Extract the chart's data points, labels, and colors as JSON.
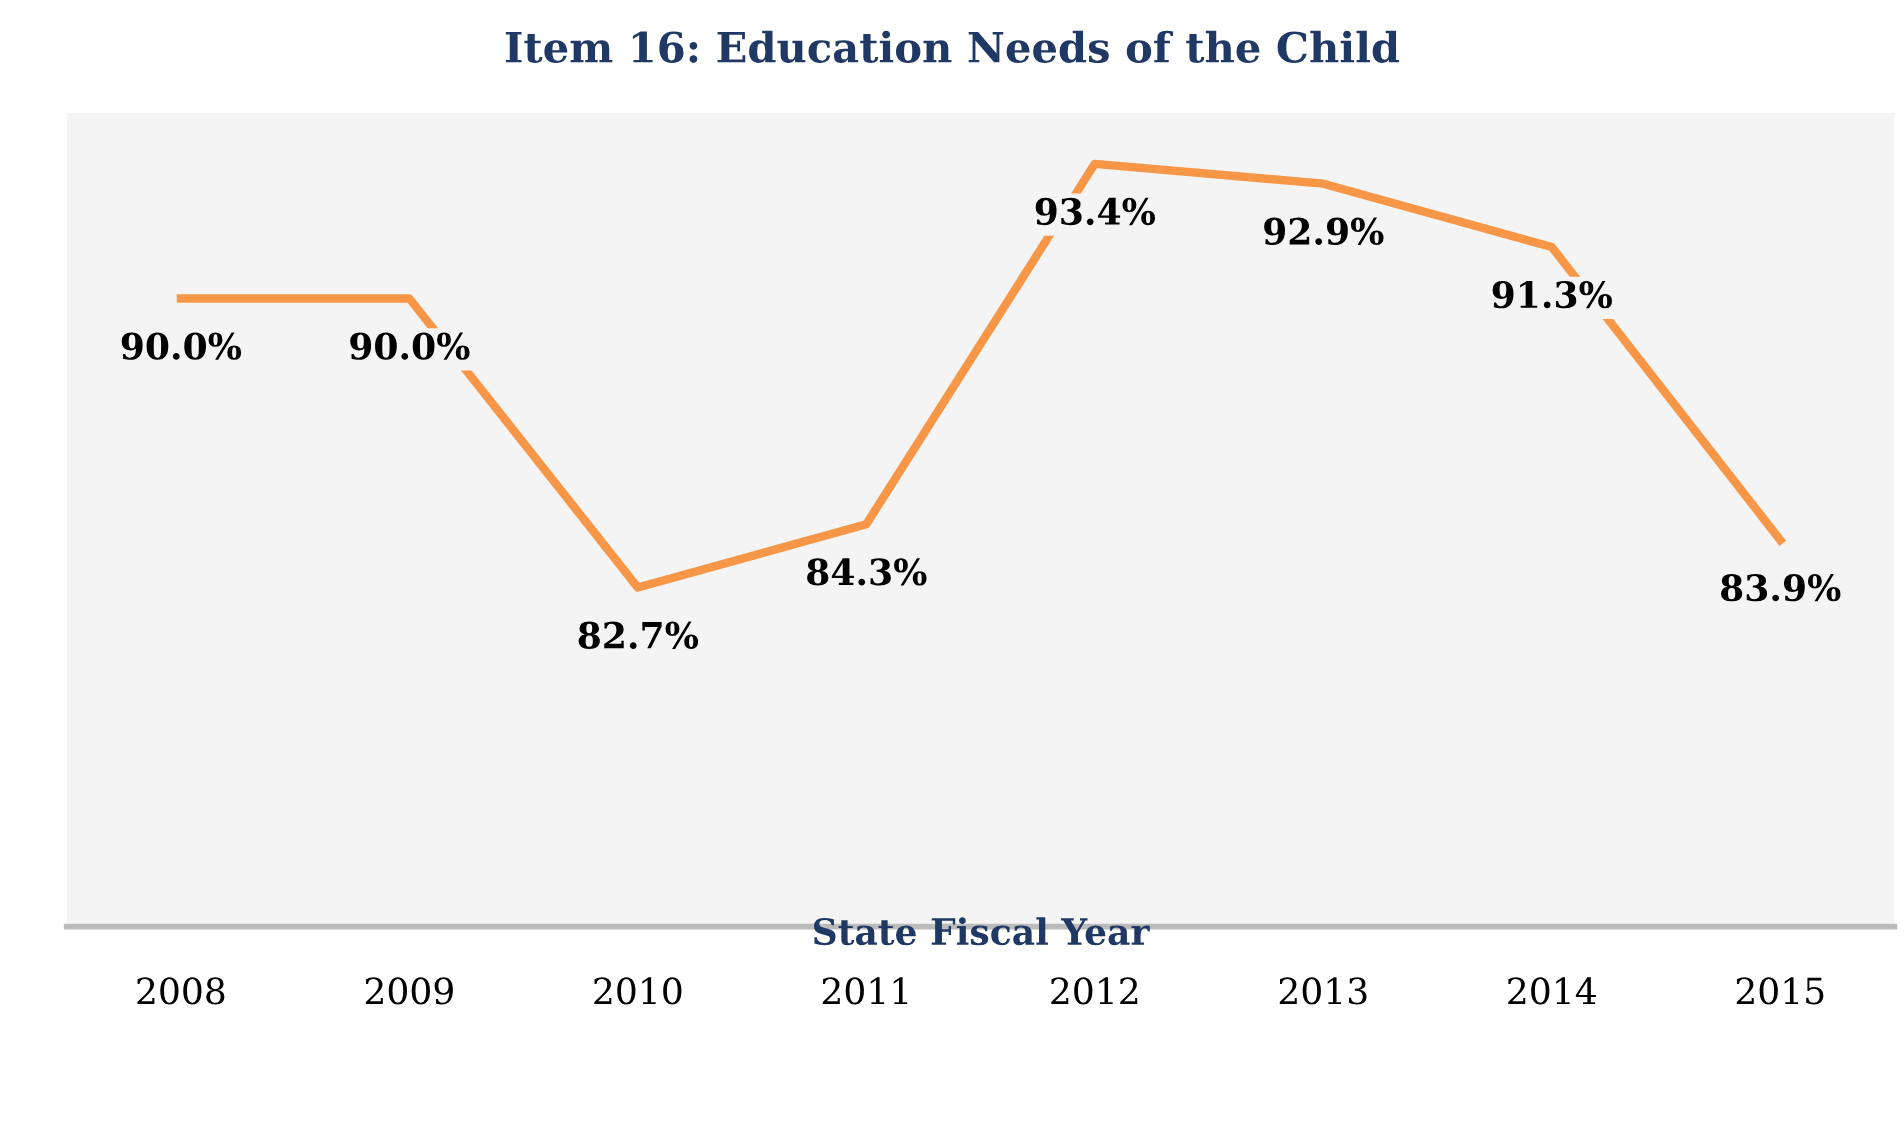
{
  "chart_data": {
    "type": "line",
    "title": "Item 16: Education Needs of the Child",
    "xlabel": "State Fiscal Year",
    "categories": [
      "2008",
      "2009",
      "2010",
      "2011",
      "2012",
      "2013",
      "2014",
      "2015"
    ],
    "series": [
      {
        "color": "#f79646",
        "values": [
          90.0,
          90.0,
          82.7,
          84.3,
          93.4,
          92.9,
          91.3,
          83.9
        ],
        "value_labels": [
          "90.0%",
          "90.0%",
          "82.7%",
          "84.3%",
          "93.4%",
          "92.9%",
          "91.3%",
          "83.9%"
        ]
      }
    ],
    "tick_labels": "x",
    "grid": false,
    "legend": false,
    "marker": "none",
    "line_style": "solid"
  }
}
